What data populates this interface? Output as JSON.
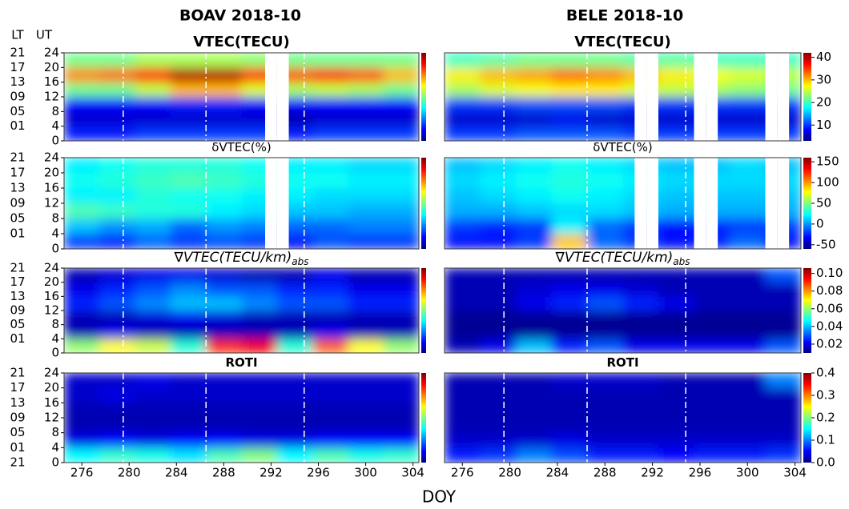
{
  "figure": {
    "column_titles": [
      "BOAV 2018-10",
      "BELE 2018-10"
    ],
    "lt_label": "LT",
    "ut_label": "UT",
    "xlabel": "DOY",
    "vlines": [
      279.5,
      286.5,
      294.8
    ]
  },
  "chart_data": [
    {
      "type": "heatmap",
      "title": "VTEC(TECU)",
      "colormap": "jet",
      "xlim": [
        274.5,
        304.5
      ],
      "ylim": [
        0,
        24
      ],
      "zlim": [
        3,
        42
      ],
      "xbins": [
        274.5,
        277.5,
        280.5,
        283.5,
        286.5,
        289.5,
        292.5,
        295.5,
        298.5,
        301.5,
        304.5
      ],
      "ybins": [
        0,
        4,
        8,
        12,
        16,
        20,
        24
      ],
      "z": [
        [
          9,
          9,
          10,
          10,
          10,
          10,
          9,
          10,
          10,
          10
        ],
        [
          6,
          6,
          6,
          6,
          6,
          6,
          5,
          6,
          6,
          6
        ],
        [
          8,
          8,
          8,
          9,
          9,
          8,
          8,
          8,
          8,
          8
        ],
        [
          22,
          22,
          25,
          30,
          30,
          26,
          24,
          25,
          24,
          22
        ],
        [
          32,
          33,
          36,
          40,
          40,
          36,
          34,
          36,
          34,
          30
        ],
        [
          22,
          22,
          24,
          24,
          24,
          23,
          22,
          22,
          22,
          22
        ]
      ],
      "missing_days": [
        292,
        293
      ],
      "yticks": [
        0,
        4,
        8,
        12,
        16,
        20,
        24
      ],
      "y2ticks": [
        {
          "value": 1,
          "label": "01"
        },
        {
          "value": 5,
          "label": "05"
        },
        {
          "value": 9,
          "label": "09"
        },
        13,
        17,
        21
      ]
    },
    {
      "type": "heatmap",
      "title": "δVTEC(%)",
      "colormap": "jet",
      "xlim": [
        274.5,
        304.5
      ],
      "ylim": [
        0,
        24
      ],
      "zlim": [
        -60,
        160
      ],
      "xbins": [
        274.5,
        277.5,
        280.5,
        283.5,
        286.5,
        289.5,
        292.5,
        295.5,
        298.5,
        301.5,
        304.5
      ],
      "ybins": [
        0,
        4,
        8,
        12,
        16,
        20,
        24
      ],
      "z": [
        [
          -20,
          -25,
          -10,
          -20,
          -15,
          -20,
          -30,
          -15,
          -20,
          -20
        ],
        [
          10,
          0,
          5,
          -10,
          0,
          -5,
          -10,
          -10,
          -5,
          -5
        ],
        [
          40,
          35,
          30,
          30,
          20,
          15,
          10,
          10,
          5,
          5
        ],
        [
          20,
          20,
          30,
          25,
          25,
          20,
          20,
          15,
          15,
          15
        ],
        [
          25,
          30,
          35,
          40,
          35,
          30,
          25,
          25,
          20,
          20
        ],
        [
          20,
          25,
          30,
          30,
          30,
          25,
          20,
          20,
          15,
          15
        ]
      ],
      "missing_days": [
        292,
        293
      ],
      "yticks": [
        0,
        4,
        8,
        12,
        16,
        20,
        24
      ],
      "y2ticks": [
        {
          "value": 1,
          "label": "01"
        },
        {
          "value": 5,
          "label": "05"
        },
        {
          "value": 9,
          "label": "09"
        },
        13,
        17,
        21
      ]
    },
    {
      "type": "heatmap",
      "title": "∇VTEC(TECU/km)",
      "title_sub": "abs",
      "colormap": "jet",
      "xlim": [
        274.5,
        304.5
      ],
      "ylim": [
        0,
        24
      ],
      "zlim": [
        0.01,
        0.106
      ],
      "xbins": [
        274.5,
        277.5,
        280.5,
        283.5,
        286.5,
        289.5,
        292.5,
        295.5,
        298.5,
        301.5,
        304.5
      ],
      "ybins": [
        0,
        4,
        8,
        12,
        16,
        20,
        24
      ],
      "z": [
        [
          0.06,
          0.07,
          0.065,
          0.05,
          0.09,
          0.095,
          0.05,
          0.085,
          0.07,
          0.06
        ],
        [
          0.015,
          0.02,
          0.015,
          0.015,
          0.015,
          0.015,
          0.015,
          0.02,
          0.015,
          0.015
        ],
        [
          0.015,
          0.015,
          0.018,
          0.02,
          0.018,
          0.015,
          0.015,
          0.015,
          0.015,
          0.015
        ],
        [
          0.025,
          0.03,
          0.035,
          0.04,
          0.04,
          0.035,
          0.03,
          0.03,
          0.025,
          0.025
        ],
        [
          0.02,
          0.025,
          0.03,
          0.035,
          0.03,
          0.03,
          0.025,
          0.025,
          0.02,
          0.02
        ],
        [
          0.015,
          0.018,
          0.02,
          0.02,
          0.018,
          0.015,
          0.015,
          0.02,
          0.015,
          0.015
        ]
      ],
      "yticks": [
        0,
        4,
        8,
        12,
        16,
        20,
        24
      ],
      "y2ticks": [
        {
          "value": 1,
          "label": "01"
        },
        {
          "value": 5,
          "label": "05"
        },
        {
          "value": 9,
          "label": "09"
        },
        13,
        17,
        21
      ]
    },
    {
      "type": "heatmap",
      "title": "ROTI",
      "colormap": "jet",
      "xlim": [
        274.5,
        304.5
      ],
      "ylim": [
        0,
        24
      ],
      "zlim": [
        0,
        0.4
      ],
      "xbins": [
        274.5,
        277.5,
        280.5,
        283.5,
        286.5,
        289.5,
        292.5,
        295.5,
        298.5,
        301.5,
        304.5
      ],
      "ybins": [
        0,
        4,
        8,
        12,
        16,
        20,
        24
      ],
      "z": [
        [
          0.15,
          0.17,
          0.16,
          0.14,
          0.18,
          0.2,
          0.15,
          0.18,
          0.16,
          0.17
        ],
        [
          0.04,
          0.05,
          0.04,
          0.05,
          0.05,
          0.04,
          0.04,
          0.05,
          0.05,
          0.05
        ],
        [
          0.02,
          0.02,
          0.02,
          0.02,
          0.02,
          0.02,
          0.02,
          0.02,
          0.02,
          0.02
        ],
        [
          0.02,
          0.02,
          0.02,
          0.02,
          0.02,
          0.02,
          0.02,
          0.02,
          0.02,
          0.02
        ],
        [
          0.03,
          0.04,
          0.03,
          0.03,
          0.03,
          0.03,
          0.03,
          0.03,
          0.03,
          0.03
        ],
        [
          0.03,
          0.03,
          0.04,
          0.03,
          0.03,
          0.03,
          0.03,
          0.03,
          0.03,
          0.03
        ]
      ],
      "yticks": [
        0,
        4,
        8,
        12,
        16,
        20,
        24
      ],
      "xticks": [
        276,
        280,
        284,
        288,
        292,
        296,
        300,
        304
      ],
      "y2ticks": [
        21,
        {
          "value": 1,
          "label": "01"
        },
        {
          "value": 5,
          "label": "05"
        },
        {
          "value": 9,
          "label": "09"
        },
        13,
        17,
        21
      ]
    },
    {
      "type": "heatmap",
      "title": "VTEC(TECU)",
      "colormap": "jet",
      "xlim": [
        274.5,
        304.5
      ],
      "ylim": [
        0,
        24
      ],
      "zlim": [
        3,
        42
      ],
      "xbins": [
        274.5,
        277.5,
        280.5,
        283.5,
        286.5,
        289.5,
        292.5,
        295.5,
        298.5,
        301.5,
        304.5
      ],
      "ybins": [
        0,
        4,
        8,
        12,
        16,
        20,
        24
      ],
      "z": [
        [
          10,
          10,
          11,
          11,
          11,
          10,
          10,
          10,
          10,
          10
        ],
        [
          6,
          6,
          6,
          7,
          6,
          6,
          6,
          6,
          6,
          6
        ],
        [
          10,
          10,
          11,
          11,
          11,
          10,
          10,
          10,
          10,
          10
        ],
        [
          24,
          26,
          27,
          28,
          28,
          26,
          25,
          24,
          23,
          22
        ],
        [
          28,
          30,
          31,
          33,
          32,
          30,
          28,
          27,
          26,
          25
        ],
        [
          20,
          21,
          22,
          22,
          22,
          21,
          21,
          20,
          20,
          20
        ]
      ],
      "missing_days": [
        291,
        292,
        296,
        297,
        302,
        303
      ],
      "cticks": [
        10,
        20,
        30,
        40
      ]
    },
    {
      "type": "heatmap",
      "title": "δVTEC(%)",
      "colormap": "jet",
      "xlim": [
        274.5,
        304.5
      ],
      "ylim": [
        0,
        24
      ],
      "zlim": [
        -60,
        160
      ],
      "xbins": [
        274.5,
        277.5,
        280.5,
        283.5,
        286.5,
        289.5,
        292.5,
        295.5,
        298.5,
        301.5,
        304.5
      ],
      "ybins": [
        0,
        4,
        8,
        12,
        16,
        20,
        24
      ],
      "z": [
        [
          -30,
          -30,
          -20,
          90,
          -10,
          -20,
          -30,
          -25,
          -10,
          -30
        ],
        [
          -20,
          -25,
          -20,
          20,
          -10,
          -20,
          -30,
          -25,
          -20,
          -20
        ],
        [
          5,
          5,
          10,
          15,
          15,
          10,
          5,
          5,
          5,
          5
        ],
        [
          10,
          15,
          20,
          25,
          20,
          15,
          10,
          10,
          10,
          10
        ],
        [
          15,
          20,
          25,
          30,
          25,
          20,
          15,
          15,
          15,
          15
        ],
        [
          10,
          15,
          20,
          25,
          20,
          15,
          10,
          10,
          15,
          10
        ]
      ],
      "missing_days": [
        291,
        292,
        296,
        297,
        302,
        303
      ],
      "cticks": [
        -50,
        0,
        50,
        100,
        150
      ]
    },
    {
      "type": "heatmap",
      "title": "∇VTEC(TECU/km)",
      "title_sub": "abs",
      "colormap": "jet",
      "xlim": [
        274.5,
        304.5
      ],
      "ylim": [
        0,
        24
      ],
      "zlim": [
        0.01,
        0.106
      ],
      "xbins": [
        274.5,
        277.5,
        280.5,
        283.5,
        286.5,
        289.5,
        292.5,
        295.5,
        298.5,
        301.5,
        304.5
      ],
      "ybins": [
        0,
        4,
        8,
        12,
        16,
        20,
        24
      ],
      "z": [
        [
          0.015,
          0.02,
          0.04,
          0.025,
          0.03,
          0.02,
          0.02,
          0.02,
          0.02,
          0.03
        ],
        [
          0.012,
          0.012,
          0.012,
          0.012,
          0.012,
          0.012,
          0.012,
          0.012,
          0.012,
          0.012
        ],
        [
          0.012,
          0.012,
          0.012,
          0.012,
          0.012,
          0.012,
          0.012,
          0.012,
          0.012,
          0.012
        ],
        [
          0.015,
          0.015,
          0.02,
          0.025,
          0.03,
          0.025,
          0.02,
          0.015,
          0.015,
          0.015
        ],
        [
          0.015,
          0.015,
          0.018,
          0.02,
          0.02,
          0.018,
          0.015,
          0.015,
          0.015,
          0.015
        ],
        [
          0.015,
          0.015,
          0.015,
          0.015,
          0.015,
          0.015,
          0.015,
          0.015,
          0.015,
          0.03
        ]
      ],
      "cticks": [
        0.02,
        0.04,
        0.06,
        0.08,
        {
          "value": 0.1,
          "label": "0.10"
        }
      ]
    },
    {
      "type": "heatmap",
      "title": "ROTI",
      "colormap": "jet",
      "xlim": [
        274.5,
        304.5
      ],
      "ylim": [
        0,
        24
      ],
      "zlim": [
        0,
        0.4
      ],
      "xbins": [
        274.5,
        277.5,
        280.5,
        283.5,
        286.5,
        289.5,
        292.5,
        295.5,
        298.5,
        301.5,
        304.5
      ],
      "ybins": [
        0,
        4,
        8,
        12,
        16,
        20,
        24
      ],
      "z": [
        [
          0.06,
          0.07,
          0.1,
          0.08,
          0.06,
          0.06,
          0.05,
          0.06,
          0.06,
          0.07
        ],
        [
          0.03,
          0.03,
          0.03,
          0.04,
          0.03,
          0.03,
          0.03,
          0.03,
          0.03,
          0.03
        ],
        [
          0.02,
          0.02,
          0.02,
          0.02,
          0.02,
          0.02,
          0.02,
          0.02,
          0.02,
          0.02
        ],
        [
          0.02,
          0.02,
          0.02,
          0.02,
          0.02,
          0.02,
          0.02,
          0.02,
          0.02,
          0.02
        ],
        [
          0.02,
          0.02,
          0.02,
          0.02,
          0.02,
          0.02,
          0.02,
          0.02,
          0.02,
          0.02
        ],
        [
          0.02,
          0.02,
          0.02,
          0.03,
          0.03,
          0.03,
          0.02,
          0.02,
          0.02,
          0.1
        ]
      ],
      "xticks": [
        276,
        280,
        284,
        288,
        292,
        296,
        300,
        304
      ],
      "cticks": [
        {
          "value": 0,
          "label": "0.0"
        },
        0.1,
        0.2,
        0.3,
        0.4
      ]
    }
  ]
}
